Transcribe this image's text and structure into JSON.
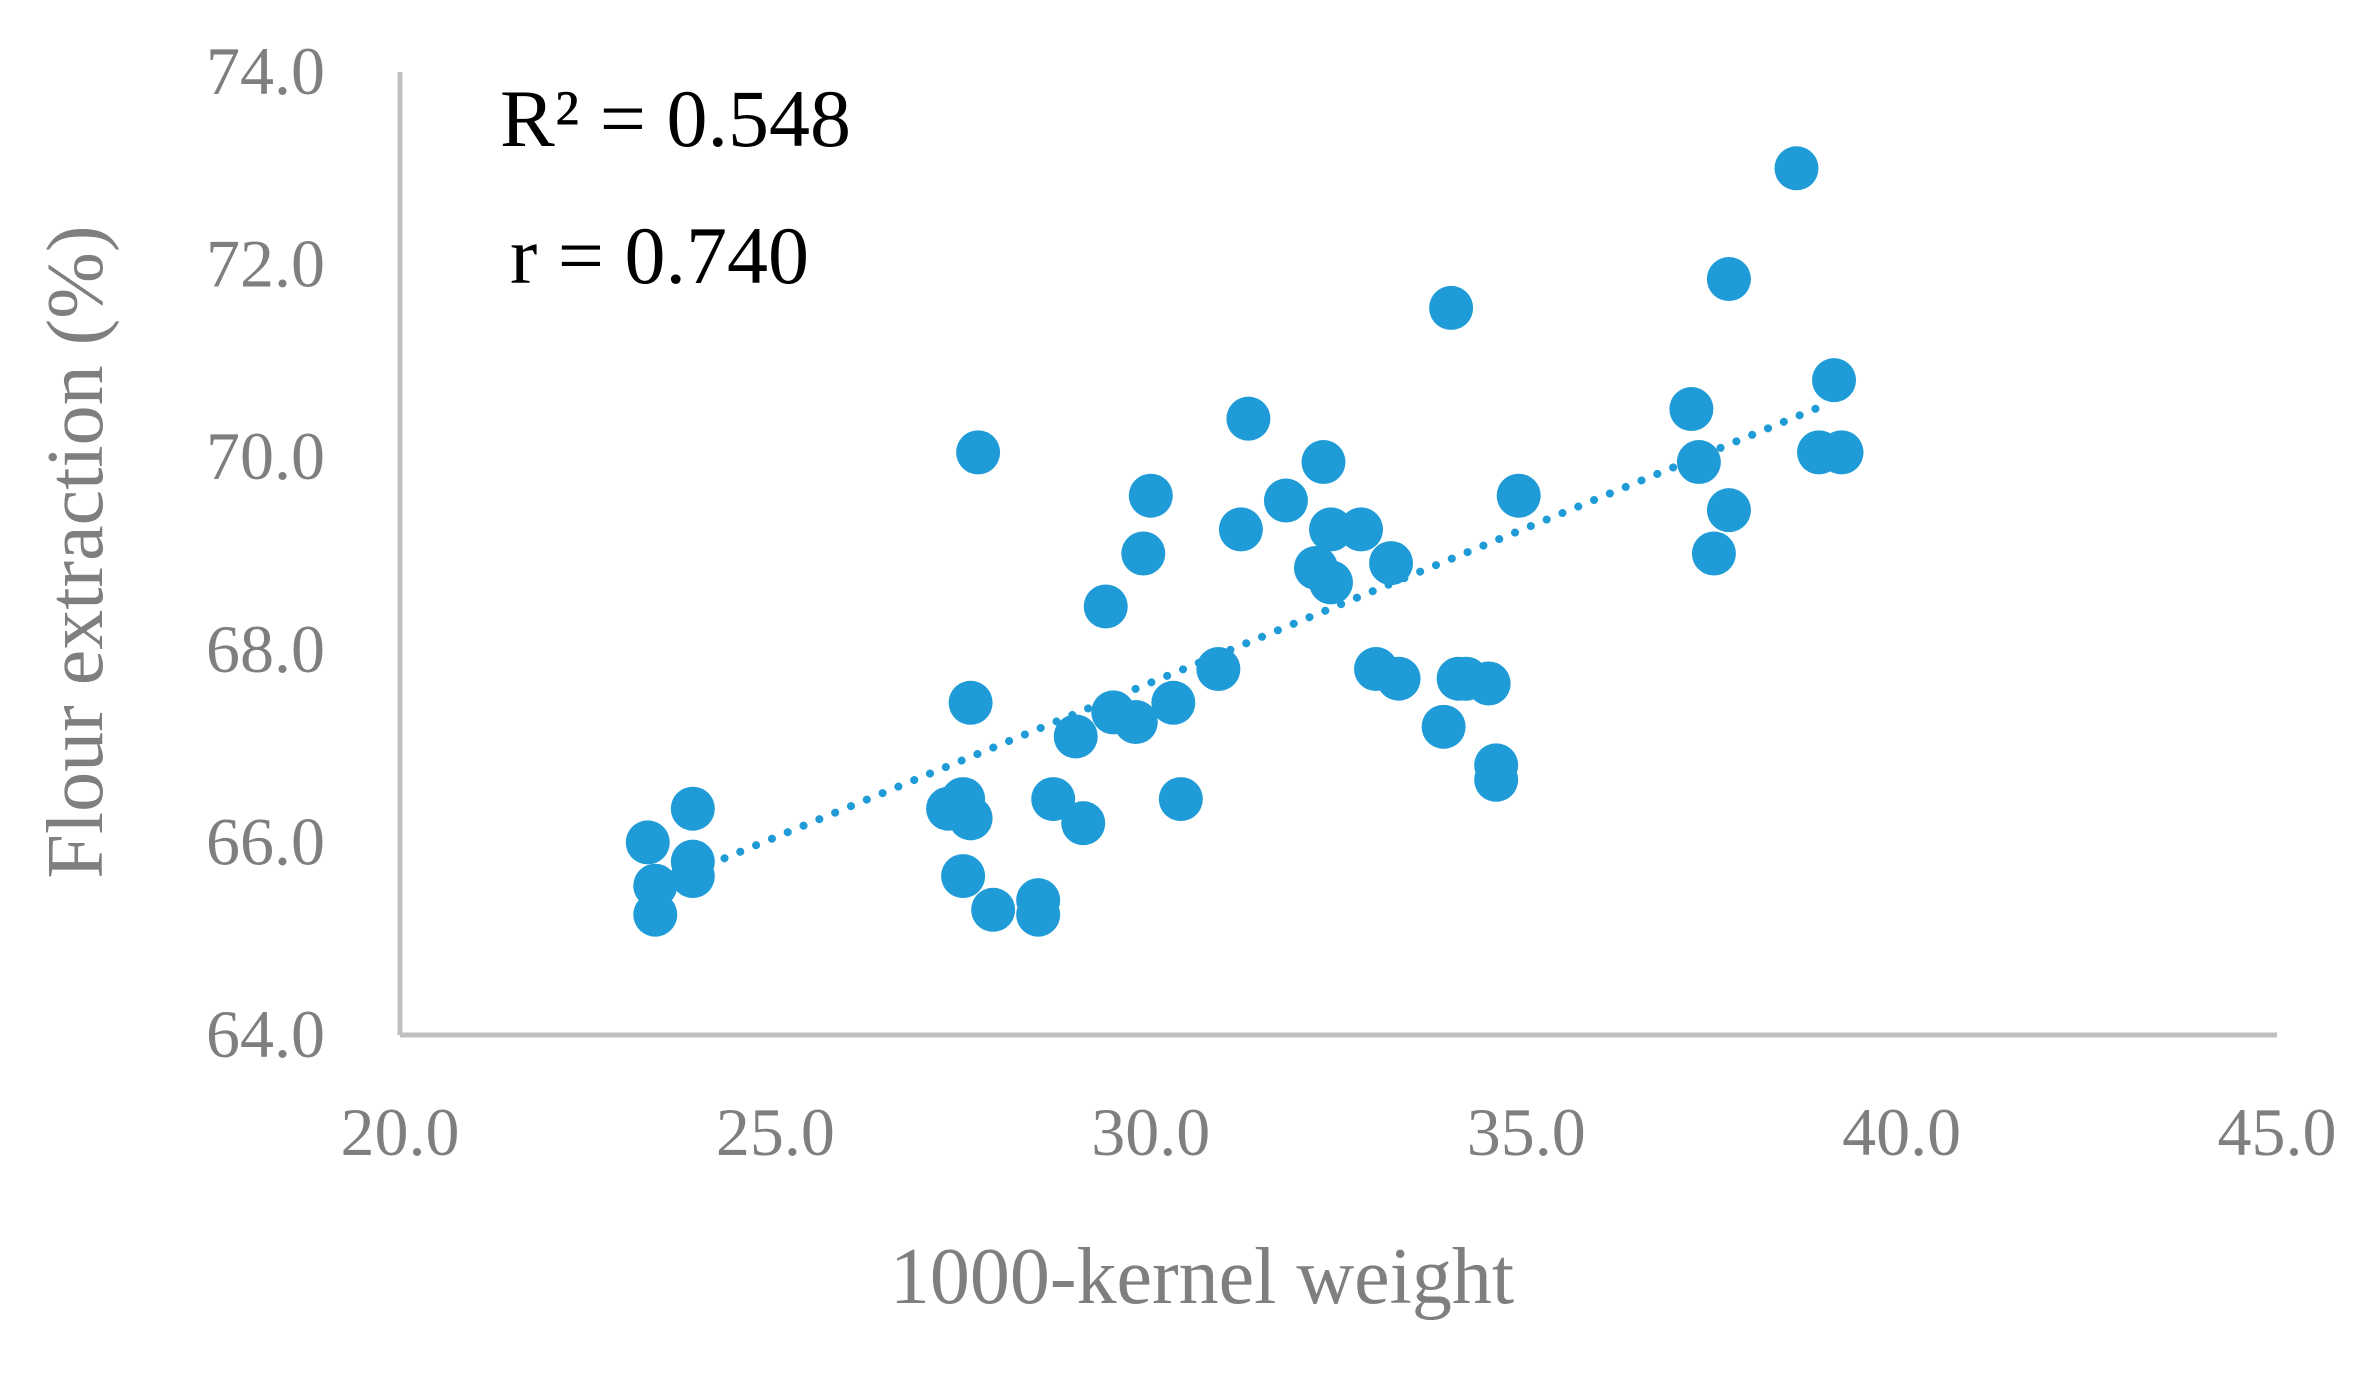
{
  "chart_data": {
    "type": "scatter",
    "xlabel": "1000-kernel weight",
    "ylabel": "Flour extraction (%)",
    "xlim": [
      20.0,
      45.0
    ],
    "ylim": [
      64.0,
      74.0
    ],
    "x_ticks": [
      "20.0",
      "25.0",
      "30.0",
      "35.0",
      "40.0",
      "45.0"
    ],
    "y_ticks": [
      "64.0",
      "66.0",
      "68.0",
      "70.0",
      "72.0",
      "74.0"
    ],
    "annotations": [
      "R² = 0.548",
      "r = 0.740"
    ],
    "grid": false,
    "legend": "none",
    "point_color": "#1f9bd7",
    "axis_color": "#bfbfbf",
    "trendline": {
      "style": "dotted",
      "x": [
        23.9,
        39.0
      ],
      "y": [
        65.7,
        70.55
      ]
    },
    "series": [
      {
        "x": [
          23.3,
          23.4,
          23.4,
          23.9,
          23.9,
          23.9,
          27.3,
          27.5,
          27.5,
          27.6,
          27.6,
          27.7,
          27.9,
          28.5,
          28.5,
          28.7,
          29.0,
          29.1,
          29.4,
          29.5,
          29.8,
          29.9,
          30.0,
          30.3,
          30.4,
          30.9,
          31.2,
          31.3,
          31.8,
          32.2,
          32.3,
          32.4,
          32.4,
          32.8,
          33.0,
          33.2,
          33.3,
          33.9,
          34.0,
          34.1,
          34.2,
          34.5,
          34.6,
          34.6,
          34.9,
          37.2,
          37.3,
          37.5,
          37.7,
          37.7,
          38.6,
          38.9,
          39.1,
          39.2
        ],
        "y": [
          66.0,
          65.55,
          65.25,
          66.35,
          65.8,
          65.65,
          66.35,
          66.45,
          65.65,
          67.45,
          66.25,
          70.05,
          65.3,
          65.4,
          65.25,
          66.45,
          67.1,
          66.2,
          68.45,
          67.35,
          67.25,
          69.0,
          69.6,
          67.45,
          66.45,
          67.8,
          69.25,
          70.4,
          69.55,
          68.85,
          69.95,
          69.25,
          68.7,
          69.25,
          67.8,
          68.9,
          67.7,
          67.2,
          71.55,
          67.7,
          67.7,
          67.65,
          66.8,
          66.65,
          69.6,
          70.5,
          69.95,
          69.0,
          69.45,
          71.85,
          73.0,
          70.05,
          70.8,
          70.05
        ]
      }
    ]
  }
}
